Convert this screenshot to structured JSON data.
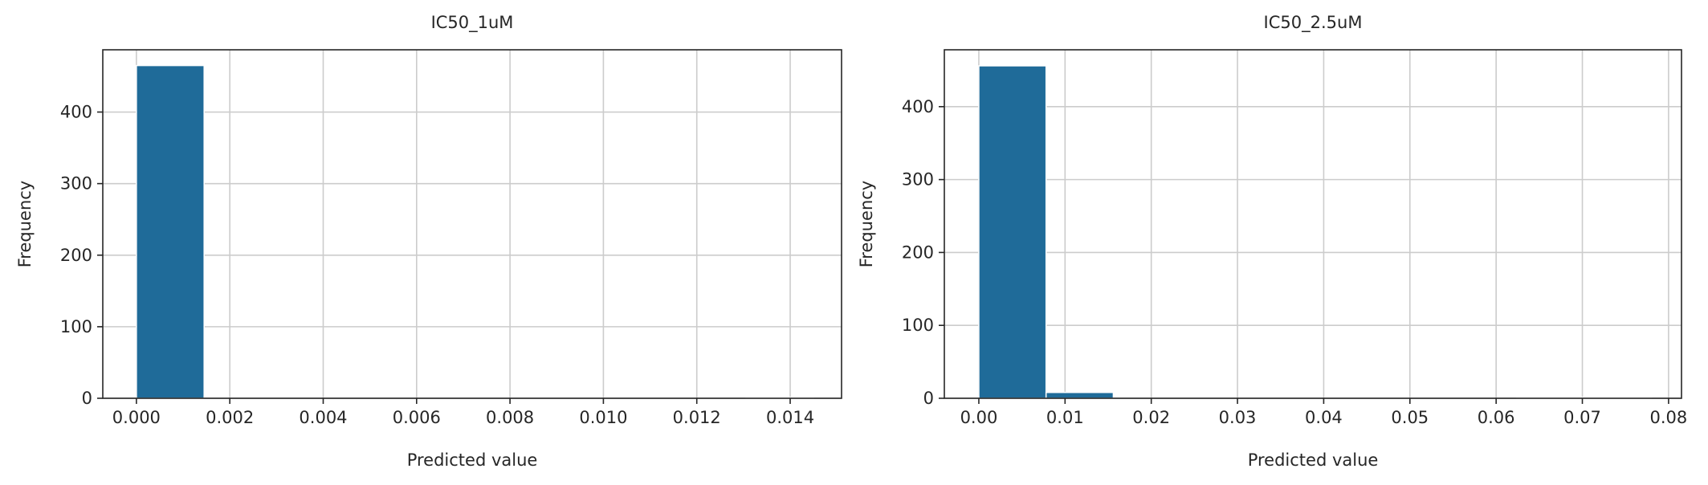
{
  "chart_data": [
    {
      "type": "bar",
      "title": "IC50_1uM",
      "xlabel": "Predicted value",
      "ylabel": "Frequency",
      "xlim": [
        -0.00072,
        0.0151
      ],
      "ylim": [
        0,
        487
      ],
      "xticks": [
        0.0,
        0.002,
        0.004,
        0.006,
        0.008,
        0.01,
        0.012,
        0.014
      ],
      "xtick_labels": [
        "0.000",
        "0.002",
        "0.004",
        "0.006",
        "0.008",
        "0.010",
        "0.012",
        "0.014"
      ],
      "yticks": [
        0,
        100,
        200,
        300,
        400
      ],
      "ytick_labels": [
        "0",
        "100",
        "200",
        "300",
        "400"
      ],
      "grid": true,
      "bar_color": "#1f6b99",
      "bins": [
        {
          "x0": 0.0,
          "x1": 0.00145,
          "count": 465
        },
        {
          "x0": 0.00145,
          "x1": 0.0029,
          "count": 0
        },
        {
          "x0": 0.0029,
          "x1": 0.00435,
          "count": 0
        },
        {
          "x0": 0.00435,
          "x1": 0.0058,
          "count": 0
        },
        {
          "x0": 0.0058,
          "x1": 0.00725,
          "count": 0
        },
        {
          "x0": 0.00725,
          "x1": 0.0087,
          "count": 0
        },
        {
          "x0": 0.0087,
          "x1": 0.01015,
          "count": 0
        },
        {
          "x0": 0.01015,
          "x1": 0.0116,
          "count": 0
        },
        {
          "x0": 0.0116,
          "x1": 0.01305,
          "count": 0
        },
        {
          "x0": 0.01305,
          "x1": 0.0145,
          "count": 1
        }
      ]
    },
    {
      "type": "bar",
      "title": "IC50_2.5uM",
      "xlabel": "Predicted value",
      "ylabel": "Frequency",
      "xlim": [
        -0.004,
        0.0815
      ],
      "ylim": [
        0,
        478
      ],
      "xticks": [
        0.0,
        0.01,
        0.02,
        0.03,
        0.04,
        0.05,
        0.06,
        0.07,
        0.08
      ],
      "xtick_labels": [
        "0.00",
        "0.01",
        "0.02",
        "0.03",
        "0.04",
        "0.05",
        "0.06",
        "0.07",
        "0.08"
      ],
      "yticks": [
        0,
        100,
        200,
        300,
        400
      ],
      "ytick_labels": [
        "0",
        "100",
        "200",
        "300",
        "400"
      ],
      "grid": true,
      "bar_color": "#1f6b99",
      "bins": [
        {
          "x0": 0.0,
          "x1": 0.0078,
          "count": 456
        },
        {
          "x0": 0.0078,
          "x1": 0.0156,
          "count": 8
        },
        {
          "x0": 0.0156,
          "x1": 0.0234,
          "count": 0
        },
        {
          "x0": 0.0234,
          "x1": 0.0312,
          "count": 0
        },
        {
          "x0": 0.0312,
          "x1": 0.039,
          "count": 0
        },
        {
          "x0": 0.039,
          "x1": 0.0468,
          "count": 0
        },
        {
          "x0": 0.0468,
          "x1": 0.0546,
          "count": 0
        },
        {
          "x0": 0.0546,
          "x1": 0.0624,
          "count": 0
        },
        {
          "x0": 0.0624,
          "x1": 0.0702,
          "count": 1
        },
        {
          "x0": 0.0702,
          "x1": 0.078,
          "count": 1
        }
      ]
    }
  ]
}
